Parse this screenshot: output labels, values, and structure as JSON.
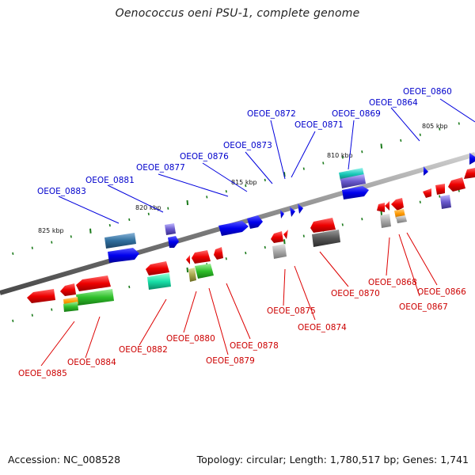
{
  "title": "Oenococcus oeni PSU-1, complete genome",
  "footer": {
    "accession_label": "Accession: NC_008528",
    "topology_label": "Topology: circular; Length: 1,780,517 bp; Genes: 1,741"
  },
  "scale_labels": [
    "805 kbp",
    "810 kbp",
    "815 kbp",
    "820 kbp",
    "825 kbp"
  ],
  "forward_genes": [
    "OEOE_0860",
    "OEOE_0864",
    "OEOE_0869",
    "OEOE_0871",
    "OEOE_0872",
    "OEOE_0873",
    "OEOE_0876",
    "OEOE_0877",
    "OEOE_0881",
    "OEOE_0883"
  ],
  "reverse_genes": [
    "OEOE_0866",
    "OEOE_0867",
    "OEOE_0868",
    "OEOE_0870",
    "OEOE_0874",
    "OEOE_0875",
    "OEOE_0878",
    "OEOE_0879",
    "OEOE_0880",
    "OEOE_0882",
    "OEOE_0884",
    "OEOE_0885"
  ],
  "colors": {
    "forward_label": "#0000cc",
    "reverse_label": "#cc0000",
    "forward_gene": "#1a1aff",
    "reverse_gene": "#ff1a1a",
    "backbone": "#808080",
    "tick": "#1a7a1a"
  }
}
